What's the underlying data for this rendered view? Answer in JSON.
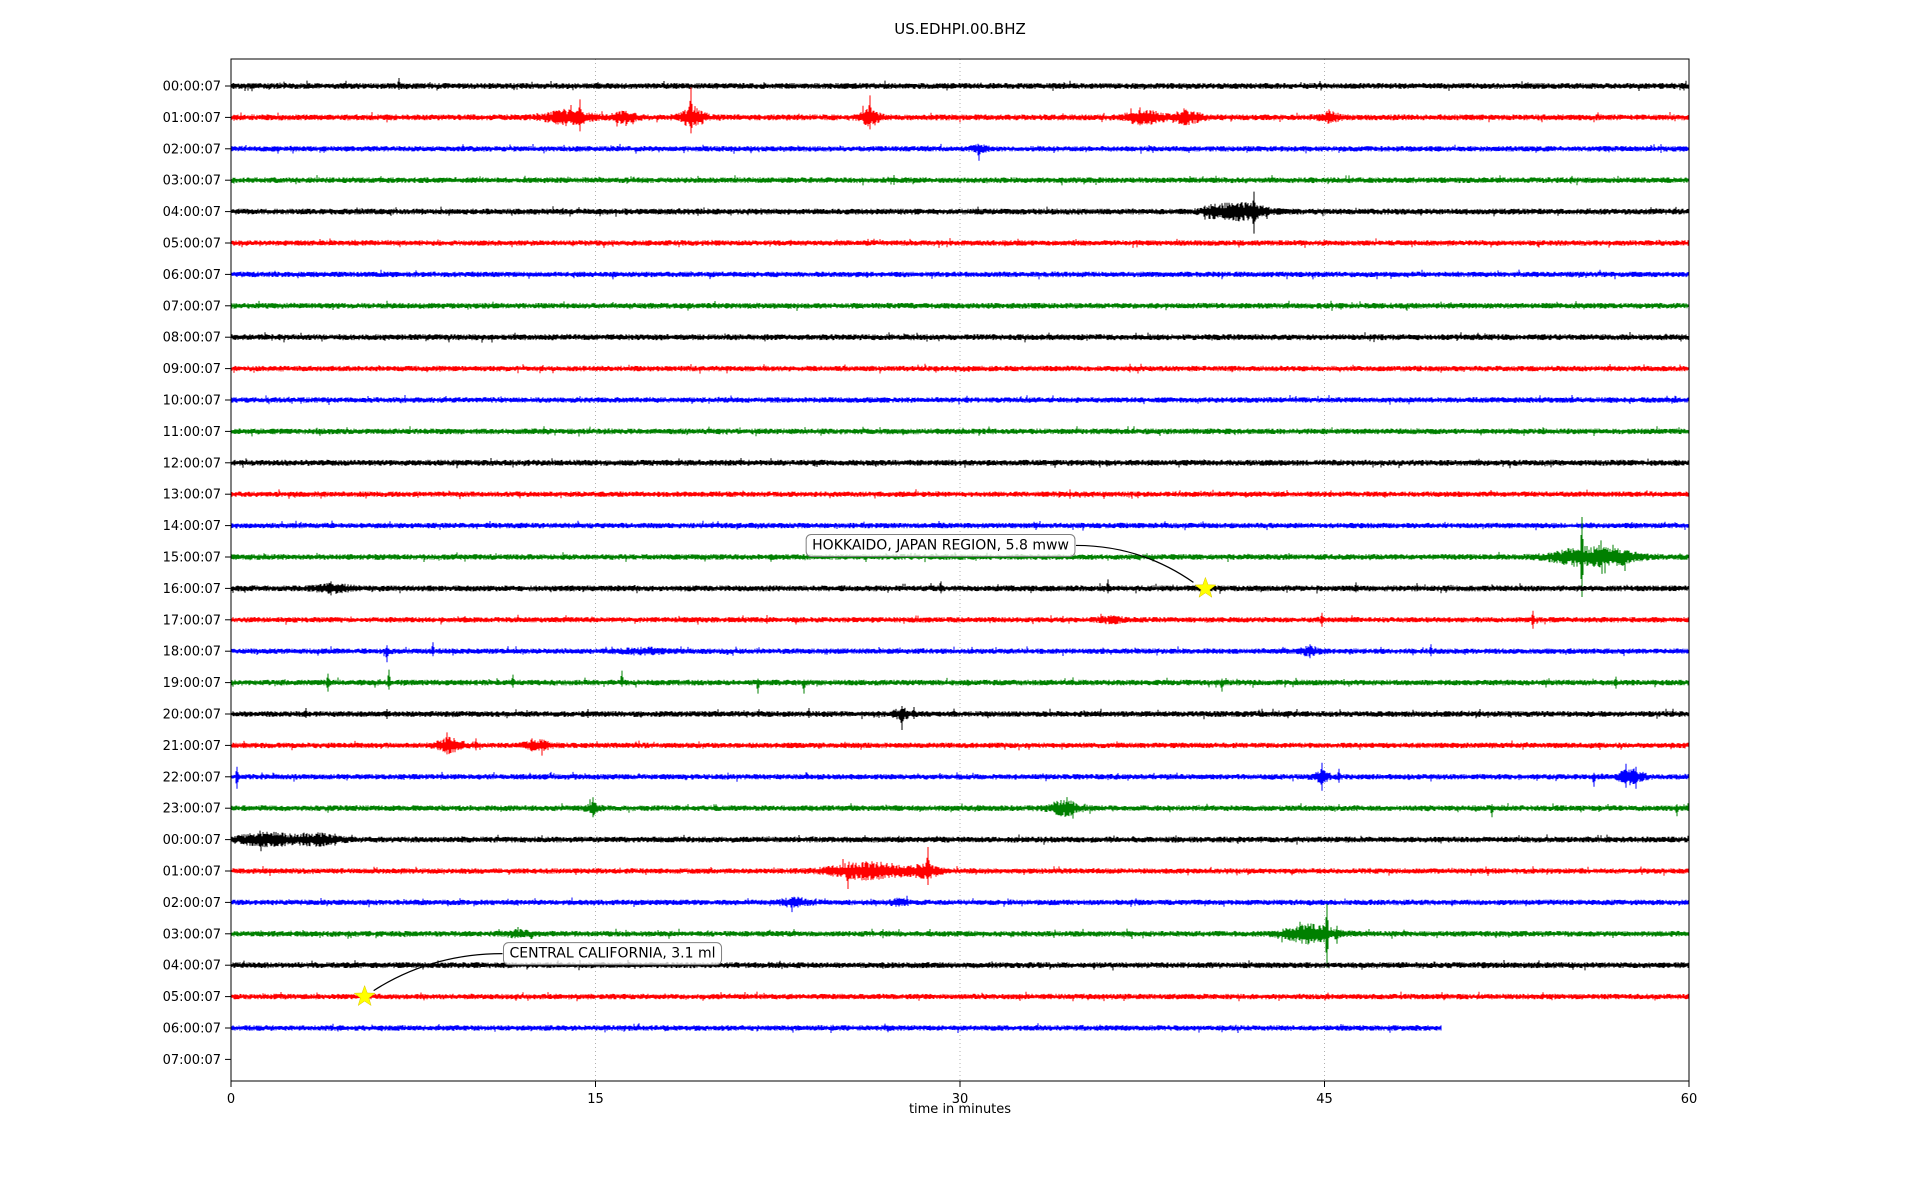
{
  "chart_data": {
    "type": "line",
    "subtype": "seismogram-dayplot",
    "title": "US.EDHPI.00.BHZ",
    "xlabel": "time in minutes",
    "xlim": [
      0,
      60
    ],
    "x_ticks": [
      0,
      15,
      30,
      45,
      60
    ],
    "grid": {
      "vertical_at": [
        15,
        30,
        45
      ],
      "style": "dotted",
      "color": "#b0b0b0"
    },
    "trace_colors_cycle": [
      "#000000",
      "#ff0000",
      "#0000ff",
      "#008000"
    ],
    "marker": {
      "shape": "star",
      "color": "#ffff00"
    },
    "rows": [
      {
        "label": "00:00:07",
        "color": "#000000",
        "base": 3.0,
        "end": 60,
        "bursts": [],
        "spikes": [
          {
            "m": 6.9,
            "up": 8,
            "dn": 4
          }
        ]
      },
      {
        "label": "01:00:07",
        "color": "#ff0000",
        "base": 3.0,
        "end": 60,
        "bursts": [
          {
            "c": 13.9,
            "w": 0.9,
            "a": 6
          },
          {
            "c": 16.2,
            "w": 0.5,
            "a": 4
          },
          {
            "c": 19.0,
            "w": 0.45,
            "a": 9
          },
          {
            "c": 26.3,
            "w": 0.35,
            "a": 7
          },
          {
            "c": 37.6,
            "w": 0.7,
            "a": 6
          },
          {
            "c": 39.3,
            "w": 0.6,
            "a": 5
          },
          {
            "c": 45.2,
            "w": 0.4,
            "a": 4
          }
        ],
        "spikes": [
          {
            "m": 14.35,
            "up": 18,
            "dn": 14
          },
          {
            "m": 18.95,
            "up": 30,
            "dn": 16
          },
          {
            "m": 26.3,
            "up": 22,
            "dn": 12
          },
          {
            "m": 37.4,
            "up": 10,
            "dn": 8
          },
          {
            "m": 39.2,
            "up": 9,
            "dn": 7
          },
          {
            "m": 45.2,
            "up": 8,
            "dn": 6
          }
        ]
      },
      {
        "label": "02:00:07",
        "color": "#0000ff",
        "base": 2.8,
        "end": 60,
        "bursts": [
          {
            "c": 30.8,
            "w": 0.3,
            "a": 3
          }
        ],
        "spikes": [
          {
            "m": 30.8,
            "up": 4,
            "dn": 12
          }
        ]
      },
      {
        "label": "03:00:07",
        "color": "#008000",
        "base": 2.9,
        "end": 60,
        "bursts": [],
        "spikes": []
      },
      {
        "label": "04:00:07",
        "color": "#000000",
        "base": 3.0,
        "end": 60,
        "bursts": [
          {
            "c": 41.6,
            "w": 1.0,
            "a": 7
          },
          {
            "c": 40.5,
            "w": 0.5,
            "a": 4
          }
        ],
        "spikes": [
          {
            "m": 42.1,
            "up": 20,
            "dn": 22
          },
          {
            "m": 40.1,
            "up": 6,
            "dn": 8
          },
          {
            "m": 41.2,
            "up": 8,
            "dn": 6
          }
        ]
      },
      {
        "label": "05:00:07",
        "color": "#ff0000",
        "base": 2.8,
        "end": 60,
        "bursts": [],
        "spikes": []
      },
      {
        "label": "06:00:07",
        "color": "#0000ff",
        "base": 2.8,
        "end": 60,
        "bursts": [],
        "spikes": []
      },
      {
        "label": "07:00:07",
        "color": "#008000",
        "base": 2.9,
        "end": 60,
        "bursts": [],
        "spikes": []
      },
      {
        "label": "08:00:07",
        "color": "#000000",
        "base": 3.0,
        "end": 60,
        "bursts": [],
        "spikes": []
      },
      {
        "label": "09:00:07",
        "color": "#ff0000",
        "base": 2.8,
        "end": 60,
        "bursts": [],
        "spikes": []
      },
      {
        "label": "10:00:07",
        "color": "#0000ff",
        "base": 2.8,
        "end": 60,
        "bursts": [],
        "spikes": []
      },
      {
        "label": "11:00:07",
        "color": "#008000",
        "base": 2.9,
        "end": 60,
        "bursts": [],
        "spikes": []
      },
      {
        "label": "12:00:07",
        "color": "#000000",
        "base": 3.0,
        "end": 60,
        "bursts": [],
        "spikes": []
      },
      {
        "label": "13:00:07",
        "color": "#ff0000",
        "base": 2.8,
        "end": 60,
        "bursts": [],
        "spikes": []
      },
      {
        "label": "14:00:07",
        "color": "#0000ff",
        "base": 2.8,
        "end": 60,
        "bursts": [],
        "spikes": []
      },
      {
        "label": "15:00:07",
        "color": "#008000",
        "base": 2.9,
        "end": 60,
        "bursts": [
          {
            "c": 55.7,
            "w": 1.3,
            "a": 8
          },
          {
            "c": 57.2,
            "w": 0.8,
            "a": 4
          }
        ],
        "spikes": [
          {
            "m": 55.6,
            "up": 40,
            "dn": 40
          },
          {
            "m": 56.3,
            "up": 12,
            "dn": 10
          }
        ]
      },
      {
        "label": "16:00:07",
        "color": "#000000",
        "base": 3.0,
        "end": 60,
        "bursts": [
          {
            "c": 4.2,
            "w": 0.7,
            "a": 3
          }
        ],
        "spikes": [
          {
            "m": 4.1,
            "up": 7,
            "dn": 7
          },
          {
            "m": 29.2,
            "up": 7,
            "dn": 5
          },
          {
            "m": 36.1,
            "up": 9,
            "dn": 5
          },
          {
            "m": 46.3,
            "up": 6,
            "dn": 4
          }
        ]
      },
      {
        "label": "17:00:07",
        "color": "#ff0000",
        "base": 2.8,
        "end": 60,
        "bursts": [
          {
            "c": 36.2,
            "w": 0.5,
            "a": 2
          }
        ],
        "spikes": [
          {
            "m": 44.9,
            "up": 7,
            "dn": 7
          },
          {
            "m": 53.6,
            "up": 9,
            "dn": 9
          }
        ]
      },
      {
        "label": "18:00:07",
        "color": "#0000ff",
        "base": 2.8,
        "end": 60,
        "bursts": [
          {
            "c": 17.0,
            "w": 0.8,
            "a": 2
          },
          {
            "c": 44.4,
            "w": 0.4,
            "a": 3
          }
        ],
        "spikes": [
          {
            "m": 6.4,
            "up": 6,
            "dn": 11
          },
          {
            "m": 8.3,
            "up": 9,
            "dn": 5
          },
          {
            "m": 44.4,
            "up": 7,
            "dn": 7
          },
          {
            "m": 49.4,
            "up": 7,
            "dn": 5
          }
        ]
      },
      {
        "label": "19:00:07",
        "color": "#008000",
        "base": 2.9,
        "end": 60,
        "bursts": [],
        "spikes": [
          {
            "m": 4.0,
            "up": 9,
            "dn": 9
          },
          {
            "m": 6.5,
            "up": 13,
            "dn": 7
          },
          {
            "m": 11.6,
            "up": 8,
            "dn": 5
          },
          {
            "m": 16.1,
            "up": 12,
            "dn": 4
          },
          {
            "m": 21.7,
            "up": 4,
            "dn": 11
          },
          {
            "m": 23.6,
            "up": 3,
            "dn": 11
          },
          {
            "m": 40.8,
            "up": 4,
            "dn": 9
          },
          {
            "m": 57.0,
            "up": 6,
            "dn": 6
          }
        ]
      },
      {
        "label": "20:00:07",
        "color": "#000000",
        "base": 3.0,
        "end": 60,
        "bursts": [
          {
            "c": 27.6,
            "w": 0.3,
            "a": 4
          }
        ],
        "spikes": [
          {
            "m": 3.1,
            "up": 6,
            "dn": 4
          },
          {
            "m": 6.4,
            "up": 5,
            "dn": 5
          },
          {
            "m": 14.7,
            "up": 5,
            "dn": 4
          },
          {
            "m": 23.8,
            "up": 6,
            "dn": 4
          },
          {
            "m": 27.6,
            "up": 8,
            "dn": 16
          },
          {
            "m": 28.1,
            "up": 7,
            "dn": 5
          }
        ]
      },
      {
        "label": "21:00:07",
        "color": "#ff0000",
        "base": 2.8,
        "end": 60,
        "bursts": [
          {
            "c": 9.0,
            "w": 0.5,
            "a": 6
          },
          {
            "c": 12.6,
            "w": 0.5,
            "a": 4
          }
        ],
        "spikes": [
          {
            "m": 8.9,
            "up": 13,
            "dn": 9
          },
          {
            "m": 10.1,
            "up": 7,
            "dn": 5
          },
          {
            "m": 12.4,
            "up": 7,
            "dn": 6
          },
          {
            "m": 12.8,
            "up": 6,
            "dn": 6
          }
        ]
      },
      {
        "label": "22:00:07",
        "color": "#0000ff",
        "base": 2.8,
        "end": 60,
        "bursts": [
          {
            "c": 57.6,
            "w": 0.5,
            "a": 6
          },
          {
            "c": 44.9,
            "w": 0.3,
            "a": 4
          }
        ],
        "spikes": [
          {
            "m": 0.25,
            "up": 10,
            "dn": 12
          },
          {
            "m": 44.9,
            "up": 14,
            "dn": 14
          },
          {
            "m": 45.6,
            "up": 8,
            "dn": 6
          },
          {
            "m": 56.1,
            "up": 4,
            "dn": 10
          },
          {
            "m": 57.4,
            "up": 13,
            "dn": 11
          },
          {
            "m": 57.8,
            "up": 10,
            "dn": 12
          }
        ]
      },
      {
        "label": "23:00:07",
        "color": "#008000",
        "base": 2.9,
        "end": 60,
        "bursts": [
          {
            "c": 34.3,
            "w": 0.6,
            "a": 6
          },
          {
            "c": 14.9,
            "w": 0.3,
            "a": 3
          }
        ],
        "spikes": [
          {
            "m": 14.9,
            "up": 11,
            "dn": 9
          },
          {
            "m": 51.9,
            "up": 4,
            "dn": 9
          },
          {
            "m": 59.5,
            "up": 4,
            "dn": 8
          }
        ]
      },
      {
        "label": "00:00:07",
        "color": "#000000",
        "base": 3.0,
        "end": 60,
        "bursts": [
          {
            "c": 1.5,
            "w": 1.2,
            "a": 5
          },
          {
            "c": 3.6,
            "w": 0.8,
            "a": 4
          }
        ],
        "spikes": [
          {
            "m": 1.2,
            "up": 9,
            "dn": 7
          },
          {
            "m": 2.1,
            "up": 7,
            "dn": 7
          },
          {
            "m": 3.0,
            "up": 7,
            "dn": 5
          },
          {
            "m": 4.3,
            "up": 6,
            "dn": 6
          }
        ]
      },
      {
        "label": "01:00:07",
        "color": "#ff0000",
        "base": 2.8,
        "end": 60,
        "bursts": [
          {
            "c": 26.3,
            "w": 1.6,
            "a": 7
          },
          {
            "c": 28.6,
            "w": 0.5,
            "a": 5
          }
        ],
        "spikes": [
          {
            "m": 25.4,
            "up": 6,
            "dn": 18
          },
          {
            "m": 26.0,
            "up": 9,
            "dn": 7
          },
          {
            "m": 27.2,
            "up": 8,
            "dn": 6
          },
          {
            "m": 28.7,
            "up": 24,
            "dn": 14
          }
        ]
      },
      {
        "label": "02:00:07",
        "color": "#0000ff",
        "base": 2.8,
        "end": 60,
        "bursts": [
          {
            "c": 23.2,
            "w": 0.6,
            "a": 3
          },
          {
            "c": 27.5,
            "w": 0.4,
            "a": 2
          }
        ],
        "spikes": [
          {
            "m": 23.2,
            "up": 5,
            "dn": 4
          }
        ]
      },
      {
        "label": "03:00:07",
        "color": "#008000",
        "base": 2.9,
        "end": 60,
        "bursts": [
          {
            "c": 44.4,
            "w": 1.0,
            "a": 8
          },
          {
            "c": 11.8,
            "w": 0.5,
            "a": 2
          }
        ],
        "spikes": [
          {
            "m": 45.1,
            "up": 30,
            "dn": 34
          },
          {
            "m": 44.0,
            "up": 12,
            "dn": 6
          },
          {
            "m": 45.5,
            "up": 8,
            "dn": 10
          }
        ]
      },
      {
        "label": "04:00:07",
        "color": "#000000",
        "base": 3.0,
        "end": 60,
        "bursts": [],
        "spikes": []
      },
      {
        "label": "05:00:07",
        "color": "#ff0000",
        "base": 2.8,
        "end": 60,
        "bursts": [],
        "spikes": []
      },
      {
        "label": "06:00:07",
        "color": "#0000ff",
        "base": 2.8,
        "end": 49.8,
        "bursts": [],
        "spikes": []
      },
      {
        "label": "07:00:07",
        "color": "#008000",
        "base": 0,
        "end": 0,
        "bursts": [],
        "spikes": []
      }
    ],
    "annotations": [
      {
        "text": "HOKKAIDO, JAPAN REGION, 5.8 mww",
        "row_index": 16,
        "star_minute": 40.1,
        "box_center_minute": 29.2,
        "box_center_row": 14.6,
        "arrow_from": "right"
      },
      {
        "text": "CENTRAL CALIFORNIA, 3.1 ml",
        "row_index": 29,
        "star_minute": 5.5,
        "box_center_minute": 15.7,
        "box_center_row": 27.6,
        "arrow_from": "left"
      }
    ]
  }
}
